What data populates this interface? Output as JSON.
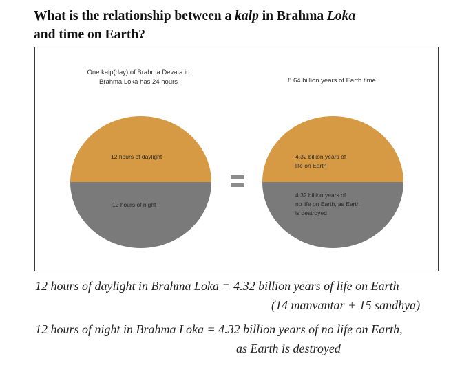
{
  "title": {
    "prefix": "What is the relationship between a ",
    "kalp": "kalp",
    "middle": " in Brahma ",
    "loka": "Loka",
    "line2": "and time on Earth?"
  },
  "diagram": {
    "left_caption_line1": "One kalp(day) of Brahma Devata in",
    "left_caption_line2": "Brahma Loka has 24 hours",
    "right_caption": "8.64 billion years of Earth time",
    "left_top_label": "12 hours of daylight",
    "left_bottom_label": "12 hours of night",
    "right_top_label_line1": "4.32 billion years of",
    "right_top_label_line2": "life on Earth",
    "right_bottom_label_line1": "4.32 billion years of",
    "right_bottom_label_line2": "no life on Earth, as Earth",
    "right_bottom_label_line3": "is destroyed",
    "colors": {
      "day": "#d69a45",
      "night": "#7a7a7a",
      "equals": "#8c8c8c"
    }
  },
  "statements": {
    "line1": "12 hours of daylight in Brahma Loka = 4.32 billion years of life on Earth",
    "line2": "(14 manvantar + 15 sandhya)",
    "line3": "12 hours of night in Brahma Loka = 4.32 billion years of no life on Earth,",
    "line4": "as Earth is destroyed"
  }
}
